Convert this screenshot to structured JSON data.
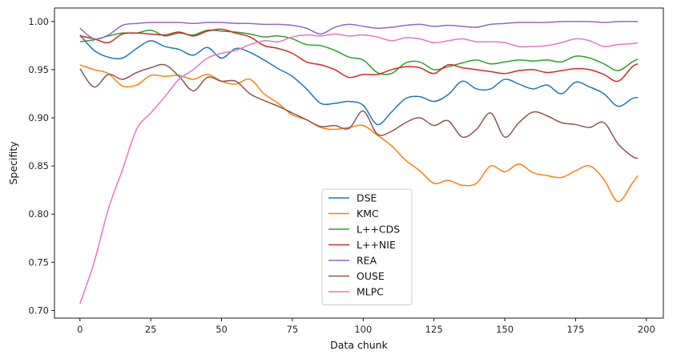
{
  "chart_data": {
    "type": "line",
    "xlabel": "Data chunk",
    "ylabel": "Specifity",
    "xlim": [
      -9,
      206
    ],
    "ylim": [
      0.692,
      1.014
    ],
    "x_ticks": [
      0,
      25,
      50,
      75,
      100,
      125,
      150,
      175,
      200
    ],
    "y_ticks": [
      0.7,
      0.75,
      0.8,
      0.85,
      0.9,
      0.95,
      1.0
    ],
    "legend_position": "lower center",
    "grid": false,
    "x": [
      0,
      5,
      10,
      15,
      20,
      25,
      30,
      35,
      40,
      45,
      50,
      55,
      60,
      65,
      70,
      75,
      80,
      85,
      90,
      95,
      100,
      105,
      110,
      115,
      120,
      125,
      130,
      135,
      140,
      145,
      150,
      155,
      160,
      165,
      170,
      175,
      180,
      185,
      190,
      195,
      197
    ],
    "series": [
      {
        "name": "DSE",
        "color": "#1f77b4",
        "values": [
          0.986,
          0.97,
          0.963,
          0.962,
          0.972,
          0.98,
          0.974,
          0.971,
          0.965,
          0.973,
          0.962,
          0.972,
          0.968,
          0.96,
          0.951,
          0.943,
          0.93,
          0.915,
          0.915,
          0.917,
          0.913,
          0.893,
          0.906,
          0.92,
          0.922,
          0.917,
          0.924,
          0.938,
          0.93,
          0.93,
          0.94,
          0.935,
          0.93,
          0.934,
          0.925,
          0.937,
          0.932,
          0.925,
          0.912,
          0.92,
          0.921
        ]
      },
      {
        "name": "KMC",
        "color": "#ff7f0e",
        "values": [
          0.955,
          0.95,
          0.946,
          0.933,
          0.934,
          0.944,
          0.943,
          0.944,
          0.94,
          0.945,
          0.938,
          0.935,
          0.94,
          0.925,
          0.915,
          0.903,
          0.898,
          0.89,
          0.888,
          0.89,
          0.892,
          0.882,
          0.871,
          0.856,
          0.845,
          0.832,
          0.835,
          0.83,
          0.832,
          0.85,
          0.844,
          0.852,
          0.843,
          0.84,
          0.838,
          0.845,
          0.85,
          0.836,
          0.813,
          0.832,
          0.84
        ]
      },
      {
        "name": "L++CDS",
        "color": "#2ca02c",
        "values": [
          0.979,
          0.981,
          0.985,
          0.988,
          0.988,
          0.991,
          0.985,
          0.988,
          0.986,
          0.991,
          0.99,
          0.989,
          0.987,
          0.984,
          0.985,
          0.982,
          0.976,
          0.975,
          0.97,
          0.963,
          0.96,
          0.947,
          0.946,
          0.957,
          0.958,
          0.95,
          0.953,
          0.957,
          0.96,
          0.956,
          0.958,
          0.96,
          0.959,
          0.96,
          0.958,
          0.964,
          0.962,
          0.956,
          0.949,
          0.958,
          0.961
        ]
      },
      {
        "name": "L++NIE",
        "color": "#d62728",
        "values": [
          0.985,
          0.982,
          0.978,
          0.987,
          0.988,
          0.987,
          0.986,
          0.989,
          0.985,
          0.99,
          0.992,
          0.988,
          0.984,
          0.975,
          0.972,
          0.967,
          0.958,
          0.955,
          0.95,
          0.942,
          0.945,
          0.945,
          0.95,
          0.953,
          0.952,
          0.946,
          0.955,
          0.952,
          0.95,
          0.948,
          0.946,
          0.949,
          0.95,
          0.947,
          0.949,
          0.951,
          0.95,
          0.945,
          0.938,
          0.953,
          0.956
        ]
      },
      {
        "name": "REA",
        "color": "#9467bd",
        "values": [
          0.993,
          0.982,
          0.986,
          0.996,
          0.998,
          0.999,
          0.999,
          0.999,
          0.998,
          0.999,
          0.999,
          0.998,
          0.998,
          0.997,
          0.997,
          0.996,
          0.993,
          0.987,
          0.994,
          0.997,
          0.995,
          0.993,
          0.994,
          0.996,
          0.997,
          0.995,
          0.996,
          0.995,
          0.994,
          0.997,
          0.998,
          0.999,
          0.999,
          0.999,
          1.0,
          1.0,
          1.0,
          0.999,
          1.0,
          1.0,
          1.0
        ]
      },
      {
        "name": "OUSE",
        "color": "#8c564b",
        "values": [
          0.951,
          0.932,
          0.945,
          0.94,
          0.947,
          0.952,
          0.955,
          0.943,
          0.928,
          0.942,
          0.938,
          0.938,
          0.925,
          0.918,
          0.912,
          0.905,
          0.898,
          0.891,
          0.892,
          0.889,
          0.907,
          0.883,
          0.886,
          0.895,
          0.9,
          0.892,
          0.897,
          0.88,
          0.888,
          0.905,
          0.88,
          0.895,
          0.906,
          0.902,
          0.895,
          0.893,
          0.89,
          0.895,
          0.873,
          0.86,
          0.858
        ]
      },
      {
        "name": "MLPC",
        "color": "#e377c2",
        "values": [
          0.707,
          0.75,
          0.805,
          0.846,
          0.888,
          0.905,
          0.922,
          0.94,
          0.95,
          0.962,
          0.967,
          0.97,
          0.976,
          0.98,
          0.979,
          0.984,
          0.986,
          0.985,
          0.987,
          0.985,
          0.986,
          0.984,
          0.98,
          0.983,
          0.982,
          0.978,
          0.98,
          0.982,
          0.979,
          0.979,
          0.978,
          0.974,
          0.974,
          0.975,
          0.978,
          0.982,
          0.98,
          0.974,
          0.976,
          0.977,
          0.978
        ]
      }
    ]
  }
}
